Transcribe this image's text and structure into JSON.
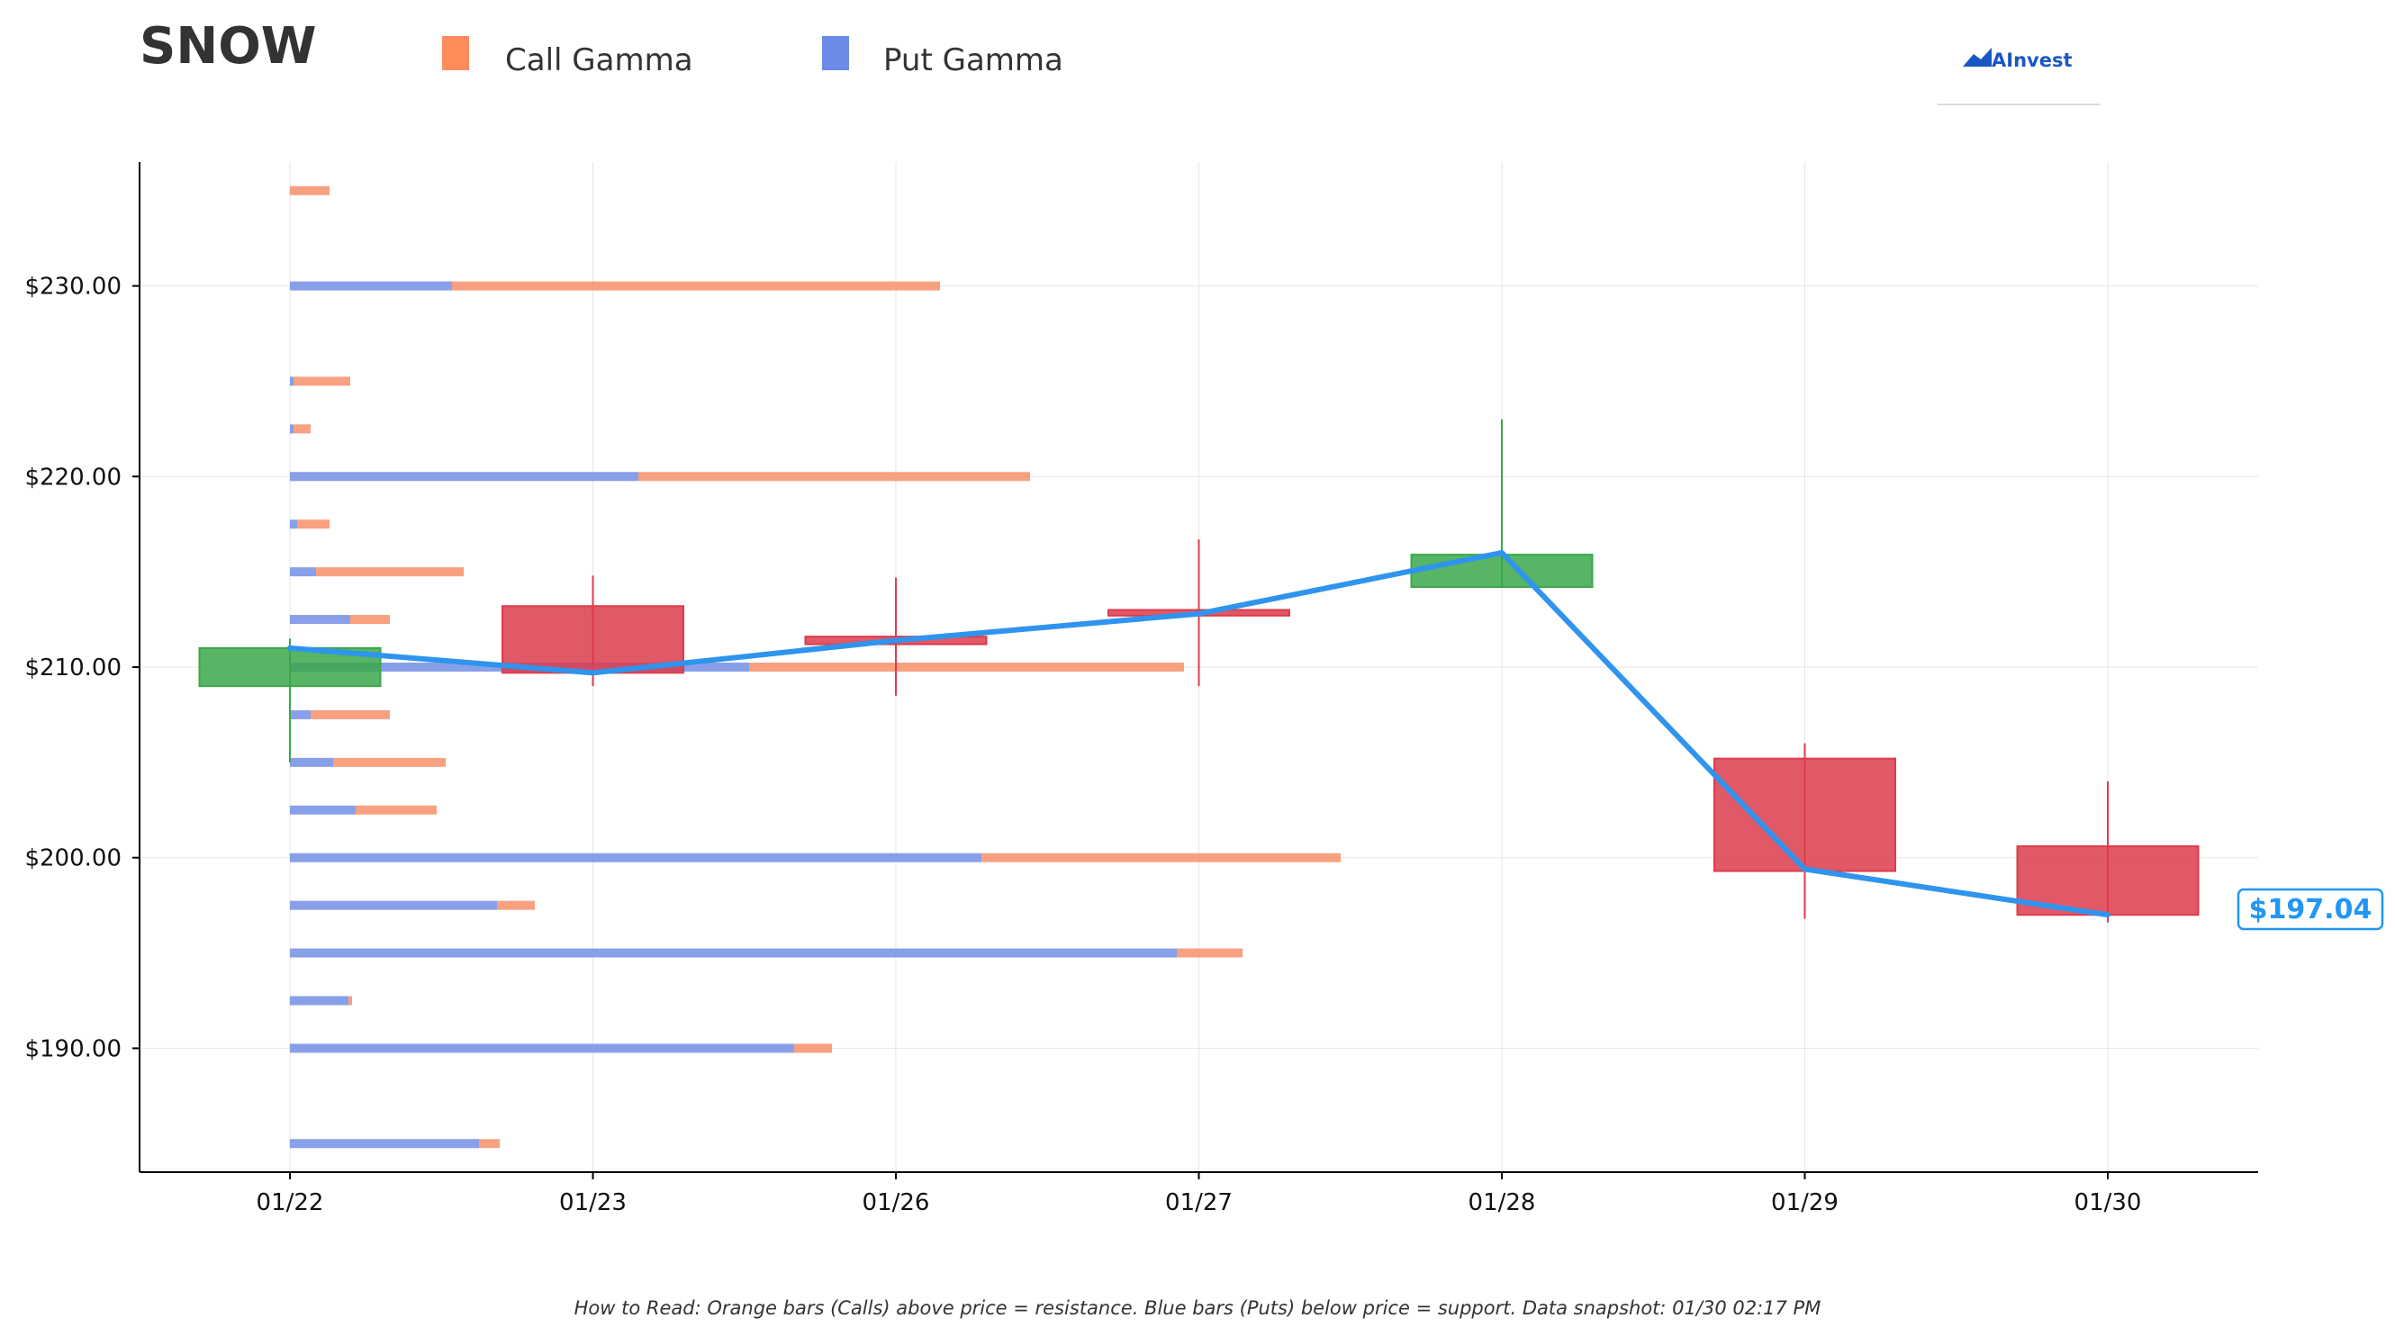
{
  "header": {
    "ticker": "SNOW",
    "logo_text": "AInvest"
  },
  "legend": {
    "items": [
      {
        "label": "Call Gamma",
        "color": "#ff8c5a"
      },
      {
        "label": "Put Gamma",
        "color": "#6b8be8"
      }
    ]
  },
  "footer_note": "How to Read: Orange bars (Calls) above price = resistance. Blue bars (Puts) below price = support. Data snapshot: 01/30 02:17 PM",
  "current_price_label": "$197.04",
  "chart_data": {
    "type": "candlestick",
    "categories": [
      "01/22",
      "01/23",
      "01/26",
      "01/27",
      "01/28",
      "01/29",
      "01/30"
    ],
    "ylim": [
      183.5,
      236.5
    ],
    "yticks": [
      190,
      200,
      210,
      220,
      230
    ],
    "ytick_labels": [
      "$190.00",
      "$200.00",
      "$210.00",
      "$220.00",
      "$230.00"
    ],
    "grid": true,
    "colors": {
      "up": "#3aa84a",
      "down": "#dc3c4c",
      "line": "#2f94ee",
      "call": "#f7916a",
      "put": "#7b96e6"
    },
    "candles": [
      {
        "date": "01/22",
        "open": 209.0,
        "high": 211.5,
        "low": 205.0,
        "close": 211.0
      },
      {
        "date": "01/23",
        "open": 213.2,
        "high": 214.8,
        "low": 209.0,
        "close": 209.7
      },
      {
        "date": "01/26",
        "open": 211.6,
        "high": 214.7,
        "low": 208.5,
        "close": 211.2
      },
      {
        "date": "01/27",
        "open": 213.0,
        "high": 216.7,
        "low": 209.0,
        "close": 212.7
      },
      {
        "date": "01/28",
        "open": 214.2,
        "high": 223.0,
        "low": 214.2,
        "close": 215.9
      },
      {
        "date": "01/29",
        "open": 205.2,
        "high": 206.0,
        "low": 196.8,
        "close": 199.3
      },
      {
        "date": "01/30",
        "open": 200.6,
        "high": 204.0,
        "low": 196.6,
        "close": 197.0
      }
    ],
    "close_line": [
      211.0,
      209.7,
      211.4,
      212.8,
      216.0,
      199.4,
      197.0
    ],
    "gamma_strikes": [
      {
        "strike": 185.0,
        "put": 2.1,
        "call": 0.23
      },
      {
        "strike": 190.0,
        "put": 5.6,
        "call": 0.42
      },
      {
        "strike": 192.5,
        "put": 0.65,
        "call": 0.04
      },
      {
        "strike": 195.0,
        "put": 9.85,
        "call": 0.73
      },
      {
        "strike": 197.5,
        "put": 2.3,
        "call": 0.42
      },
      {
        "strike": 200.0,
        "put": 7.68,
        "call": 3.99
      },
      {
        "strike": 202.5,
        "put": 0.73,
        "call": 0.9
      },
      {
        "strike": 205.0,
        "put": 0.48,
        "call": 1.25
      },
      {
        "strike": 207.5,
        "put": 0.23,
        "call": 0.88
      },
      {
        "strike": 210.0,
        "put": 5.1,
        "call": 4.83
      },
      {
        "strike": 212.5,
        "put": 0.67,
        "call": 0.44
      },
      {
        "strike": 215.0,
        "put": 0.29,
        "call": 1.64
      },
      {
        "strike": 217.5,
        "put": 0.08,
        "call": 0.36
      },
      {
        "strike": 220.0,
        "put": 3.87,
        "call": 4.35
      },
      {
        "strike": 222.5,
        "put": 0.04,
        "call": 0.19
      },
      {
        "strike": 225.0,
        "put": 0.04,
        "call": 0.63
      },
      {
        "strike": 230.0,
        "put": 1.8,
        "call": 5.42
      },
      {
        "strike": 235.0,
        "put": 0.0,
        "call": 0.44
      }
    ]
  }
}
